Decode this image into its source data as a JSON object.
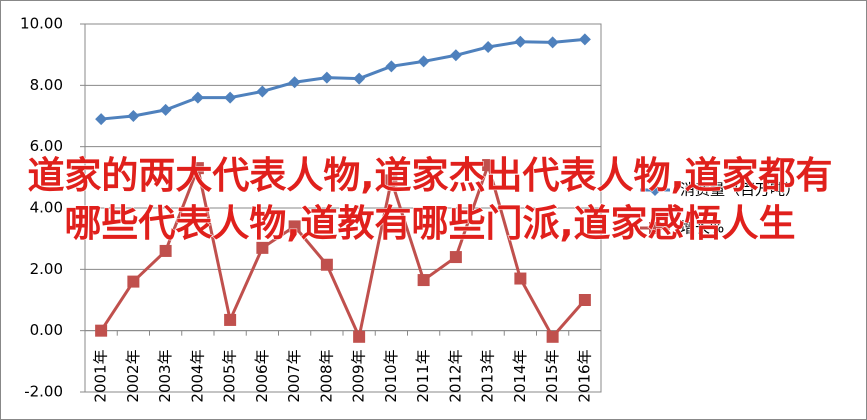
{
  "chart_data": {
    "type": "line",
    "overlay_text": "道家的两大代表人物,道家杰出代表人物,道家都有哪些代表人物,道教有哪些门派,道家感悟人生",
    "categories": [
      "2001年",
      "2002年",
      "2003年",
      "2004年",
      "2005年",
      "2006年",
      "2007年",
      "2008年",
      "2009年",
      "2010年",
      "2011年",
      "2012年",
      "2013年",
      "2014年",
      "2015年",
      "2016年"
    ],
    "series": [
      {
        "name": "消费量（百万吨）",
        "color": "#4f81bd",
        "marker": "diamond",
        "values": [
          6.9,
          7.0,
          7.2,
          7.6,
          7.6,
          7.8,
          8.1,
          8.25,
          8.22,
          8.62,
          8.78,
          8.98,
          9.25,
          9.42,
          9.4,
          9.5
        ]
      },
      {
        "name": "增长%",
        "color": "#c0504d",
        "marker": "square",
        "values": [
          0.0,
          1.6,
          2.6,
          5.3,
          0.35,
          2.7,
          3.4,
          2.15,
          -0.2,
          4.9,
          1.65,
          2.4,
          5.4,
          1.7,
          -0.2,
          1.0
        ]
      }
    ],
    "ylim": [
      -2,
      10
    ],
    "yticks": [
      {
        "value": -2,
        "label": "-2.00"
      },
      {
        "value": 0,
        "label": "0.00"
      },
      {
        "value": 2,
        "label": "2.00"
      },
      {
        "value": 4,
        "label": "4.00"
      },
      {
        "value": 6,
        "label": "6.00"
      },
      {
        "value": 8,
        "label": "8.00"
      },
      {
        "value": 10,
        "label": "10.00"
      }
    ],
    "grid": true,
    "legend": "right"
  }
}
